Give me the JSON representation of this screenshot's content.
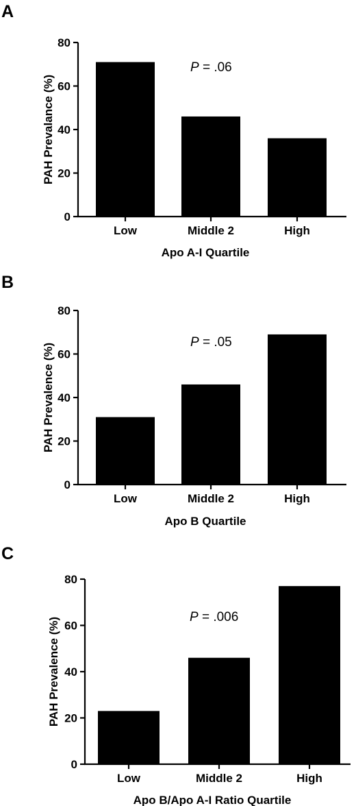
{
  "colors": {
    "bar": "#000000",
    "axis": "#000000",
    "background": "#ffffff"
  },
  "chart_data": [
    {
      "type": "bar",
      "panel_label": "A",
      "categories": [
        "Low",
        "Middle 2",
        "High"
      ],
      "values": [
        71,
        46,
        36
      ],
      "xlabel": "Apo A-I Quartile",
      "ylabel": "PAH Prevalance (%)",
      "ylim": [
        0,
        80
      ],
      "yticks": [
        0,
        20,
        40,
        60,
        80
      ],
      "annotation": {
        "italic": "P",
        "rest": " = .06"
      },
      "grid": false,
      "legend": "none"
    },
    {
      "type": "bar",
      "panel_label": "B",
      "categories": [
        "Low",
        "Middle 2",
        "High"
      ],
      "values": [
        31,
        46,
        69
      ],
      "xlabel": "Apo B Quartile",
      "ylabel": "PAH Prevalence (%)",
      "ylim": [
        0,
        80
      ],
      "yticks": [
        0,
        20,
        40,
        60,
        80
      ],
      "annotation": {
        "italic": "P",
        "rest": " = .05"
      },
      "grid": false,
      "legend": "none"
    },
    {
      "type": "bar",
      "panel_label": "C",
      "categories": [
        "Low",
        "Middle 2",
        "High"
      ],
      "values": [
        23,
        46,
        77
      ],
      "xlabel": "Apo B/Apo A-I Ratio Quartile",
      "ylabel": "PAH Prevalence (%)",
      "ylim": [
        0,
        80
      ],
      "yticks": [
        0,
        20,
        40,
        60,
        80
      ],
      "annotation": {
        "italic": "P",
        "rest": " = .006"
      },
      "grid": false,
      "legend": "none"
    }
  ]
}
